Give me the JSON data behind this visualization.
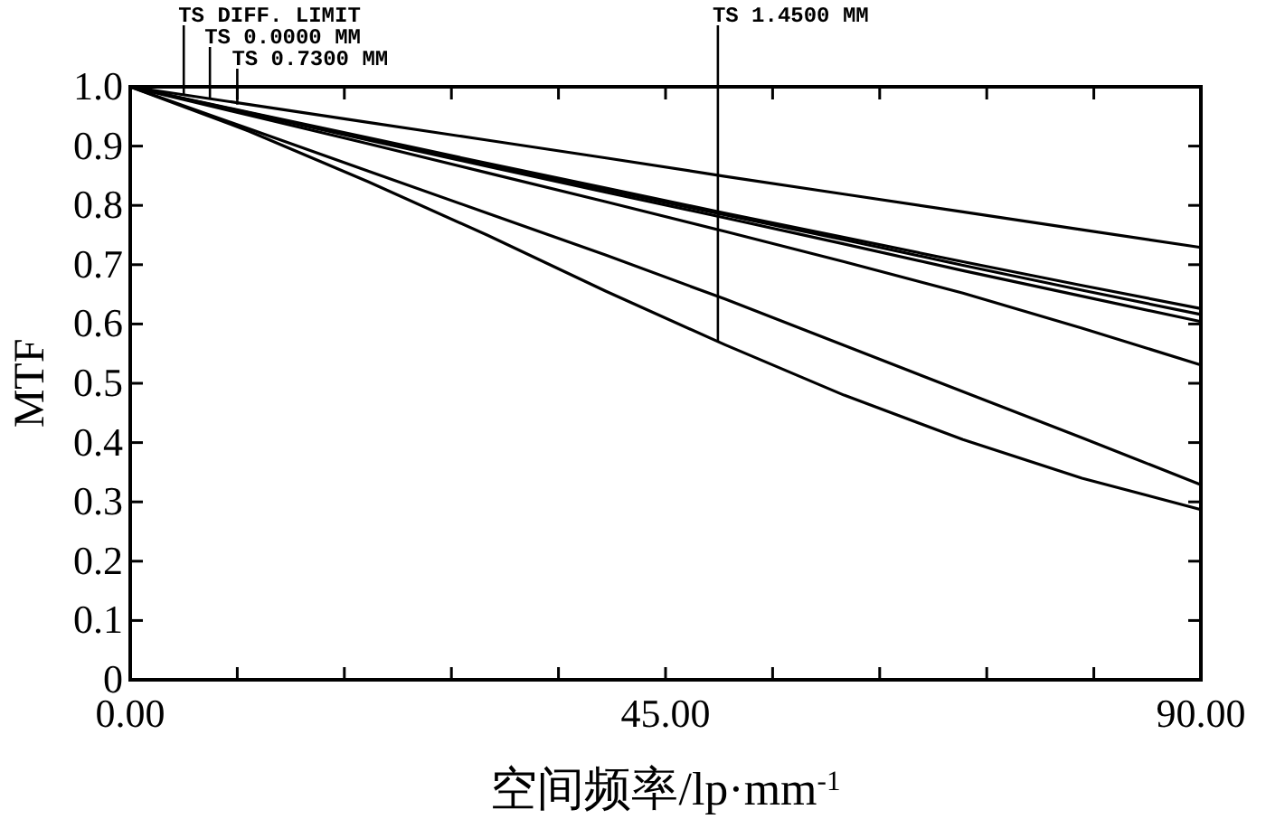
{
  "chart_data": {
    "type": "line",
    "xlabel": "空间频率/lp·mm$^{-1}$",
    "ylabel": "MTF",
    "x": [
      0,
      10,
      20,
      30,
      40,
      50,
      60,
      70,
      80,
      90
    ],
    "xlim": [
      0,
      90
    ],
    "ylim": [
      0,
      1
    ],
    "xticks": [
      {
        "value": 0,
        "label": "0.00"
      },
      {
        "value": 9,
        "label": null
      },
      {
        "value": 18,
        "label": null
      },
      {
        "value": 27,
        "label": null
      },
      {
        "value": 36,
        "label": null
      },
      {
        "value": 45,
        "label": "45.00"
      },
      {
        "value": 54,
        "label": null
      },
      {
        "value": 63,
        "label": null
      },
      {
        "value": 72,
        "label": null
      },
      {
        "value": 81,
        "label": null
      },
      {
        "value": 90,
        "label": "90.00"
      }
    ],
    "yticks": [
      0,
      0.1,
      0.2,
      0.3,
      0.4,
      0.5,
      0.6,
      0.7,
      0.8,
      0.9,
      {
        "value": 1,
        "label": "1.0"
      }
    ],
    "series": [
      {
        "color": "#000000",
        "values": [
          1,
          0.97,
          0.94,
          0.91,
          0.88,
          0.849,
          0.819,
          0.789,
          0.759,
          0.729
        ]
      },
      {
        "color": "#000000",
        "values": [
          1,
          0.957,
          0.914,
          0.871,
          0.829,
          0.787,
          0.746,
          0.705,
          0.665,
          0.626
        ]
      },
      {
        "color": "#000000",
        "values": [
          1,
          0.956,
          0.912,
          0.869,
          0.826,
          0.784,
          0.742,
          0.699,
          0.657,
          0.616
        ]
      },
      {
        "color": "#000000",
        "values": [
          1,
          0.955,
          0.91,
          0.866,
          0.822,
          0.779,
          0.735,
          0.69,
          0.647,
          0.604
        ]
      },
      {
        "color": "#000000",
        "values": [
          1,
          0.952,
          0.904,
          0.855,
          0.806,
          0.756,
          0.705,
          0.652,
          0.593,
          0.531
        ]
      },
      {
        "color": "#000000",
        "values": [
          1,
          0.929,
          0.858,
          0.787,
          0.716,
          0.642,
          0.564,
          0.486,
          0.408,
          0.329
        ]
      },
      {
        "color": "#000000",
        "values": [
          1,
          0.925,
          0.84,
          0.75,
          0.655,
          0.565,
          0.48,
          0.405,
          0.34,
          0.287
        ]
      }
    ],
    "annotations": [
      {
        "text": "TS DIFF. LIMIT",
        "x": 4.5,
        "y": 0.986
      },
      {
        "text": "TS 0.0000 MM",
        "x": 6.7,
        "y": 0.98
      },
      {
        "text": "TS 0.7300 MM",
        "x": 9,
        "y": 0.97
      },
      {
        "text": "TS 1.4500 MM",
        "x": 49.4,
        "y": 0.57
      }
    ]
  }
}
